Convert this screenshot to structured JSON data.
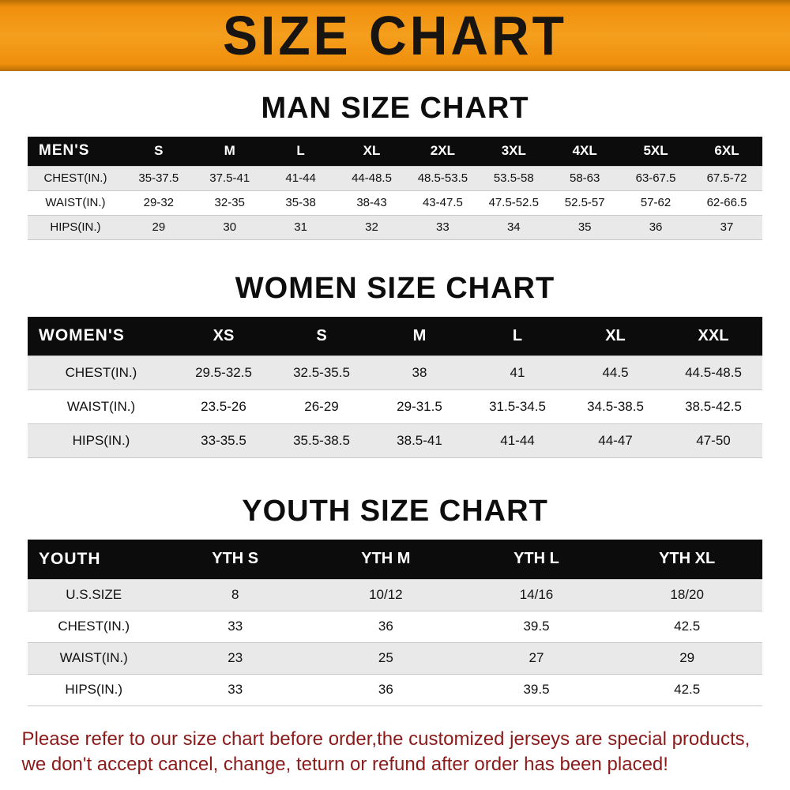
{
  "banner": {
    "title": "SIZE CHART",
    "bg_color": "#F59F1E",
    "text_color": "#181411"
  },
  "chart_data": [
    {
      "type": "table",
      "title": "MAN SIZE CHART",
      "corner_label": "MEN'S",
      "columns": [
        "S",
        "M",
        "L",
        "XL",
        "2XL",
        "3XL",
        "4XL",
        "5XL",
        "6XL"
      ],
      "rows": [
        {
          "label": "CHEST(IN.)",
          "values": [
            "35-37.5",
            "37.5-41",
            "41-44",
            "44-48.5",
            "48.5-53.5",
            "53.5-58",
            "58-63",
            "63-67.5",
            "67.5-72"
          ]
        },
        {
          "label": "WAIST(IN.)",
          "values": [
            "29-32",
            "32-35",
            "35-38",
            "38-43",
            "43-47.5",
            "47.5-52.5",
            "52.5-57",
            "57-62",
            "62-66.5"
          ]
        },
        {
          "label": "HIPS(IN.)",
          "values": [
            "29",
            "30",
            "31",
            "32",
            "33",
            "34",
            "35",
            "36",
            "37"
          ]
        }
      ]
    },
    {
      "type": "table",
      "title": "WOMEN SIZE CHART",
      "corner_label": "WOMEN'S",
      "columns": [
        "XS",
        "S",
        "M",
        "L",
        "XL",
        "XXL"
      ],
      "rows": [
        {
          "label": "CHEST(IN.)",
          "values": [
            "29.5-32.5",
            "32.5-35.5",
            "38",
            "41",
            "44.5",
            "44.5-48.5"
          ]
        },
        {
          "label": "WAIST(IN.)",
          "values": [
            "23.5-26",
            "26-29",
            "29-31.5",
            "31.5-34.5",
            "34.5-38.5",
            "38.5-42.5"
          ]
        },
        {
          "label": "HIPS(IN.)",
          "values": [
            "33-35.5",
            "35.5-38.5",
            "38.5-41",
            "41-44",
            "44-47",
            "47-50"
          ]
        }
      ]
    },
    {
      "type": "table",
      "title": "YOUTH SIZE CHART",
      "corner_label": "YOUTH",
      "columns": [
        "YTH S",
        "YTH M",
        "YTH L",
        "YTH XL"
      ],
      "rows": [
        {
          "label": "U.S.SIZE",
          "values": [
            "8",
            "10/12",
            "14/16",
            "18/20"
          ]
        },
        {
          "label": "CHEST(IN.)",
          "values": [
            "33",
            "36",
            "39.5",
            "42.5"
          ]
        },
        {
          "label": "WAIST(IN.)",
          "values": [
            "23",
            "25",
            "27",
            "29"
          ]
        },
        {
          "label": "HIPS(IN.)",
          "values": [
            "33",
            "36",
            "39.5",
            "42.5"
          ]
        }
      ]
    }
  ],
  "footer": {
    "color": "#8B1A1A",
    "lines": [
      "Please refer to our size chart before order,the customized jerseys are special products,",
      "we don't accept cancel, change, teturn or refund after order has been placed!"
    ]
  }
}
